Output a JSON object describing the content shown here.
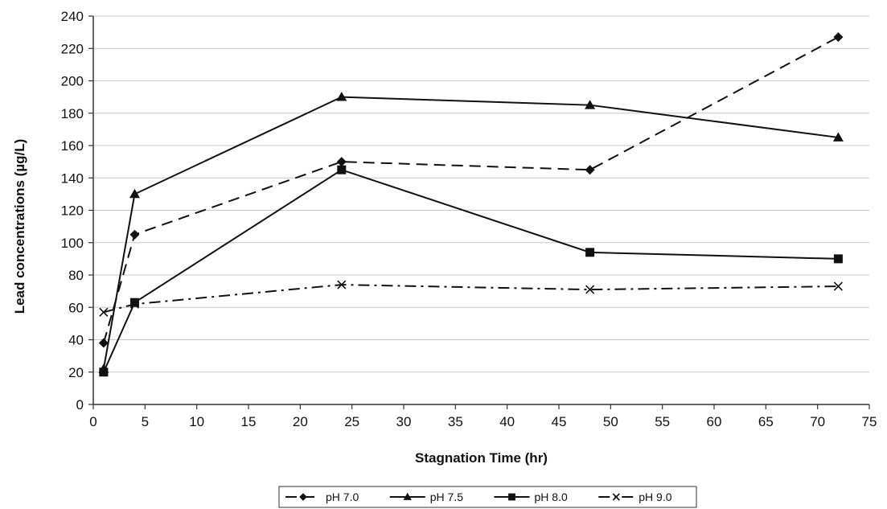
{
  "chart_data": {
    "type": "line",
    "xlabel": "Stagnation Time (hr)",
    "ylabel": "Lead concentrations (µg/L)",
    "xlim": [
      0,
      75
    ],
    "ylim": [
      0,
      240
    ],
    "xticks": [
      0,
      5,
      10,
      15,
      20,
      25,
      30,
      35,
      40,
      45,
      50,
      55,
      60,
      65,
      70,
      75
    ],
    "yticks": [
      0,
      20,
      40,
      60,
      80,
      100,
      120,
      140,
      160,
      180,
      200,
      220,
      240
    ],
    "grid": "horizontal",
    "legend_position": "bottom",
    "series": [
      {
        "name": "pH 7.0",
        "marker": "diamond",
        "line": "dashed",
        "x": [
          1,
          4,
          24,
          48,
          72
        ],
        "y": [
          38,
          105,
          150,
          145,
          227
        ]
      },
      {
        "name": "pH 7.5",
        "marker": "triangle",
        "line": "solid",
        "x": [
          1,
          4,
          24,
          48,
          72
        ],
        "y": [
          22,
          130,
          190,
          185,
          165
        ]
      },
      {
        "name": "pH 8.0",
        "marker": "square",
        "line": "solid",
        "x": [
          1,
          4,
          24,
          48,
          72
        ],
        "y": [
          20,
          63,
          145,
          94,
          90
        ]
      },
      {
        "name": "pH 9.0",
        "marker": "x",
        "line": "dash-dot",
        "x": [
          1,
          4,
          24,
          48,
          72
        ],
        "y": [
          57,
          62,
          74,
          71,
          73
        ]
      }
    ]
  }
}
